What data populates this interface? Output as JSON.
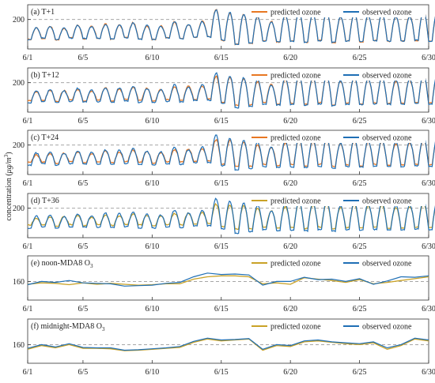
{
  "figure": {
    "ylabel": "concentration (μg/m³)",
    "ylabel_parts": {
      "main": "concentration (",
      "mu": "μ",
      "unit": "g/m",
      "exp": "3",
      "close": ")"
    }
  },
  "colors": {
    "predicted_a_c": "#E87722",
    "predicted_d_f": "#C9A227",
    "observed": "#1F6FB5",
    "threshold": "#9a9a9a"
  },
  "chart_data": [
    {
      "type": "line",
      "title": "(a) T+1",
      "xticks": [
        "6/1",
        "6/5",
        "6/10",
        "6/15",
        "6/20",
        "6/25",
        "6/30"
      ],
      "xtick_days": [
        1,
        5,
        10,
        15,
        20,
        25,
        30
      ],
      "xlim": [
        1,
        30
      ],
      "ylim": [
        20,
        290
      ],
      "yticks": [
        200
      ],
      "threshold": 200,
      "grid": false,
      "legend_position": "top-right",
      "series": [
        {
          "name": "predicted ozone",
          "color_key": "predicted_a_c",
          "resolution": "hourly",
          "days": [
            1,
            30
          ],
          "daily_peaks": [
            150,
            160,
            148,
            165,
            158,
            172,
            166,
            180,
            162,
            160,
            186,
            170,
            190,
            262,
            240,
            232,
            218,
            188,
            226,
            250,
            232,
            246,
            212,
            240,
            225,
            236,
            215,
            222,
            255,
            246
          ],
          "daily_lows": [
            78,
            84,
            76,
            88,
            82,
            86,
            80,
            90,
            82,
            78,
            88,
            84,
            90,
            95,
            72,
            48,
            55,
            70,
            62,
            68,
            60,
            72,
            58,
            70,
            64,
            72,
            66,
            70,
            72,
            70
          ]
        },
        {
          "name": "observed ozone",
          "color_key": "observed",
          "resolution": "hourly",
          "days": [
            1,
            30
          ],
          "daily_peaks": [
            152,
            158,
            150,
            166,
            156,
            170,
            168,
            178,
            164,
            158,
            188,
            172,
            188,
            260,
            242,
            230,
            220,
            186,
            228,
            248,
            234,
            244,
            214,
            238,
            226,
            234,
            218,
            220,
            252,
            248
          ],
          "daily_lows": [
            76,
            86,
            78,
            86,
            84,
            84,
            82,
            88,
            80,
            80,
            86,
            82,
            92,
            93,
            74,
            46,
            57,
            68,
            64,
            66,
            62,
            70,
            60,
            68,
            66,
            70,
            68,
            68,
            74,
            68
          ]
        }
      ]
    },
    {
      "type": "line",
      "title": "(b) T+12",
      "xticks": [
        "6/1",
        "6/5",
        "6/10",
        "6/15",
        "6/20",
        "6/25",
        "6/30"
      ],
      "xtick_days": [
        1,
        5,
        10,
        15,
        20,
        25,
        30
      ],
      "xlim": [
        1,
        30
      ],
      "ylim": [
        20,
        290
      ],
      "yticks": [
        200
      ],
      "threshold": 200,
      "grid": false,
      "legend_position": "top-right",
      "series": [
        {
          "name": "predicted ozone",
          "color_key": "predicted_a_c",
          "resolution": "hourly",
          "days": [
            1,
            30
          ],
          "daily_peaks": [
            145,
            155,
            152,
            160,
            150,
            168,
            160,
            172,
            165,
            158,
            175,
            178,
            180,
            240,
            232,
            225,
            205,
            190,
            220,
            240,
            228,
            238,
            210,
            232,
            222,
            230,
            210,
            218,
            245,
            238
          ],
          "daily_lows": [
            90,
            92,
            85,
            95,
            88,
            95,
            88,
            98,
            92,
            88,
            96,
            92,
            98,
            100,
            80,
            62,
            65,
            78,
            70,
            75,
            68,
            78,
            65,
            76,
            70,
            78,
            72,
            74,
            78,
            76
          ]
        },
        {
          "name": "observed ozone",
          "color_key": "observed",
          "resolution": "hourly",
          "days": [
            1,
            30
          ],
          "daily_peaks": [
            152,
            158,
            150,
            166,
            156,
            170,
            168,
            178,
            164,
            158,
            188,
            172,
            188,
            260,
            242,
            230,
            220,
            186,
            228,
            248,
            234,
            244,
            214,
            238,
            226,
            234,
            218,
            220,
            252,
            248
          ],
          "daily_lows": [
            76,
            86,
            78,
            86,
            84,
            84,
            82,
            88,
            80,
            80,
            86,
            82,
            92,
            93,
            74,
            46,
            57,
            68,
            64,
            66,
            62,
            70,
            60,
            68,
            66,
            70,
            68,
            68,
            74,
            68
          ]
        }
      ]
    },
    {
      "type": "line",
      "title": "(c) T+24",
      "xticks": [
        "6/1",
        "6/5",
        "6/10",
        "6/15",
        "6/20",
        "6/25",
        "6/30"
      ],
      "xtick_days": [
        1,
        5,
        10,
        15,
        20,
        25,
        30
      ],
      "xlim": [
        1,
        30
      ],
      "ylim": [
        20,
        290
      ],
      "yticks": [
        200
      ],
      "threshold": 200,
      "grid": false,
      "legend_position": "top-right",
      "series": [
        {
          "name": "predicted ozone",
          "color_key": "predicted_a_c",
          "resolution": "hourly",
          "days": [
            1,
            30
          ],
          "daily_peaks": [
            140,
            150,
            150,
            158,
            148,
            165,
            158,
            170,
            160,
            155,
            172,
            175,
            178,
            232,
            228,
            220,
            200,
            188,
            215,
            235,
            225,
            232,
            208,
            228,
            220,
            226,
            208,
            215,
            238,
            232
          ],
          "daily_lows": [
            95,
            96,
            88,
            98,
            92,
            98,
            92,
            100,
            95,
            90,
            98,
            96,
            100,
            104,
            84,
            68,
            70,
            82,
            74,
            80,
            72,
            82,
            70,
            80,
            74,
            82,
            76,
            78,
            82,
            80
          ]
        },
        {
          "name": "observed ozone",
          "color_key": "observed",
          "resolution": "hourly",
          "days": [
            1,
            30
          ],
          "daily_peaks": [
            152,
            158,
            150,
            166,
            156,
            170,
            168,
            178,
            164,
            158,
            188,
            172,
            188,
            260,
            242,
            230,
            220,
            186,
            228,
            248,
            234,
            244,
            214,
            238,
            226,
            234,
            218,
            220,
            252,
            248
          ],
          "daily_lows": [
            76,
            86,
            78,
            86,
            84,
            84,
            82,
            88,
            80,
            80,
            86,
            82,
            92,
            93,
            74,
            46,
            57,
            68,
            64,
            66,
            62,
            70,
            60,
            68,
            66,
            70,
            68,
            68,
            74,
            68
          ]
        }
      ]
    },
    {
      "type": "line",
      "title": "(d) T+36",
      "xticks": [
        "6/1",
        "6/5",
        "6/10",
        "6/15",
        "6/20",
        "6/25",
        "6/30"
      ],
      "xtick_days": [
        1,
        5,
        10,
        15,
        20,
        25,
        30
      ],
      "xlim": [
        1,
        30
      ],
      "ylim": [
        20,
        290
      ],
      "yticks": [
        200
      ],
      "threshold": 200,
      "grid": false,
      "legend_position": "top-right",
      "series": [
        {
          "name": "predicted ozone",
          "color_key": "predicted_d_f",
          "resolution": "hourly",
          "days": [
            1,
            30
          ],
          "daily_peaks": [
            138,
            148,
            148,
            155,
            146,
            160,
            155,
            165,
            158,
            152,
            168,
            170,
            175,
            225,
            222,
            215,
            198,
            185,
            210,
            230,
            220,
            228,
            205,
            225,
            215,
            222,
            205,
            212,
            232,
            228
          ],
          "daily_lows": [
            98,
            98,
            90,
            100,
            95,
            100,
            95,
            102,
            98,
            92,
            100,
            98,
            102,
            106,
            88,
            72,
            74,
            85,
            78,
            82,
            76,
            85,
            74,
            82,
            78,
            85,
            78,
            80,
            84,
            82
          ]
        },
        {
          "name": "observed ozone",
          "color_key": "observed",
          "resolution": "hourly",
          "days": [
            1,
            30
          ],
          "daily_peaks": [
            152,
            158,
            150,
            166,
            156,
            170,
            168,
            178,
            164,
            158,
            188,
            172,
            188,
            260,
            242,
            230,
            220,
            186,
            228,
            248,
            234,
            244,
            214,
            238,
            226,
            234,
            218,
            220,
            252,
            248
          ],
          "daily_lows": [
            76,
            86,
            78,
            86,
            84,
            84,
            82,
            88,
            80,
            80,
            86,
            82,
            92,
            93,
            74,
            46,
            57,
            68,
            64,
            66,
            62,
            70,
            60,
            68,
            66,
            70,
            68,
            68,
            74,
            68
          ]
        }
      ]
    },
    {
      "type": "line",
      "title": "(e) noon-MDA8 O",
      "title_sub": "3",
      "xticks": [
        "6/1",
        "6/5",
        "6/10",
        "6/15",
        "6/20",
        "6/25",
        "6/30"
      ],
      "xtick_days": [
        1,
        5,
        10,
        15,
        20,
        25,
        30
      ],
      "xlim": [
        1,
        30
      ],
      "ylim": [
        120,
        215
      ],
      "yticks": [
        160
      ],
      "threshold": 160,
      "grid": false,
      "legend_position": "top-right",
      "series": [
        {
          "name": "predicted ozone",
          "color_key": "predicted_d_f",
          "x": [
            1,
            2,
            3,
            4,
            5,
            6,
            7,
            8,
            9,
            10,
            11,
            12,
            13,
            14,
            15,
            16,
            17,
            18,
            19,
            20,
            21,
            22,
            23,
            24,
            25,
            26,
            27,
            28,
            29,
            30
          ],
          "values": [
            154,
            157,
            156,
            153,
            157,
            154,
            156,
            154,
            152,
            153,
            155,
            155,
            165,
            170,
            172,
            172,
            170,
            155,
            157,
            154,
            168,
            165,
            162,
            158,
            164,
            155,
            158,
            162,
            166,
            170
          ]
        },
        {
          "name": "observed ozone",
          "color_key": "observed",
          "x": [
            1,
            2,
            3,
            4,
            5,
            6,
            7,
            8,
            9,
            10,
            11,
            12,
            13,
            14,
            15,
            16,
            17,
            18,
            19,
            20,
            21,
            22,
            23,
            24,
            25,
            26,
            27,
            28,
            29,
            30
          ],
          "values": [
            153,
            160,
            158,
            162,
            157,
            156,
            155,
            150,
            151,
            152,
            156,
            158,
            170,
            178,
            175,
            176,
            174,
            152,
            160,
            160,
            169,
            164,
            165,
            160,
            166,
            154,
            161,
            170,
            169,
            172
          ]
        }
      ]
    },
    {
      "type": "line",
      "title": "(f) midnight-MDA8 O",
      "title_sub": "3",
      "xticks": [
        "6/1",
        "6/5",
        "6/10",
        "6/15",
        "6/20",
        "6/25",
        "6/30"
      ],
      "xtick_days": [
        1,
        5,
        10,
        15,
        20,
        25,
        30
      ],
      "xlim": [
        1,
        30
      ],
      "ylim": [
        120,
        215
      ],
      "yticks": [
        160
      ],
      "threshold": 160,
      "grid": false,
      "legend_position": "top-right",
      "series": [
        {
          "name": "predicted ozone",
          "color_key": "predicted_d_f",
          "x": [
            1,
            2,
            3,
            4,
            5,
            6,
            7,
            8,
            9,
            10,
            11,
            12,
            13,
            14,
            15,
            16,
            17,
            18,
            19,
            20,
            21,
            22,
            23,
            24,
            25,
            26,
            27,
            28,
            29,
            30
          ],
          "values": [
            150,
            158,
            153,
            160,
            152,
            152,
            151,
            147,
            148,
            150,
            152,
            154,
            165,
            172,
            168,
            170,
            172,
            148,
            158,
            156,
            166,
            168,
            165,
            162,
            160,
            164,
            150,
            158,
            172,
            168
          ]
        },
        {
          "name": "observed ozone",
          "color_key": "observed",
          "x": [
            1,
            2,
            3,
            4,
            5,
            6,
            7,
            8,
            9,
            10,
            11,
            12,
            13,
            14,
            15,
            16,
            17,
            18,
            19,
            20,
            21,
            22,
            23,
            24,
            25,
            26,
            27,
            28,
            29,
            30
          ],
          "values": [
            152,
            160,
            155,
            162,
            154,
            153,
            153,
            148,
            149,
            151,
            153,
            156,
            167,
            174,
            170,
            171,
            173,
            150,
            160,
            158,
            168,
            170,
            166,
            164,
            162,
            166,
            153,
            160,
            174,
            170
          ]
        }
      ]
    }
  ]
}
